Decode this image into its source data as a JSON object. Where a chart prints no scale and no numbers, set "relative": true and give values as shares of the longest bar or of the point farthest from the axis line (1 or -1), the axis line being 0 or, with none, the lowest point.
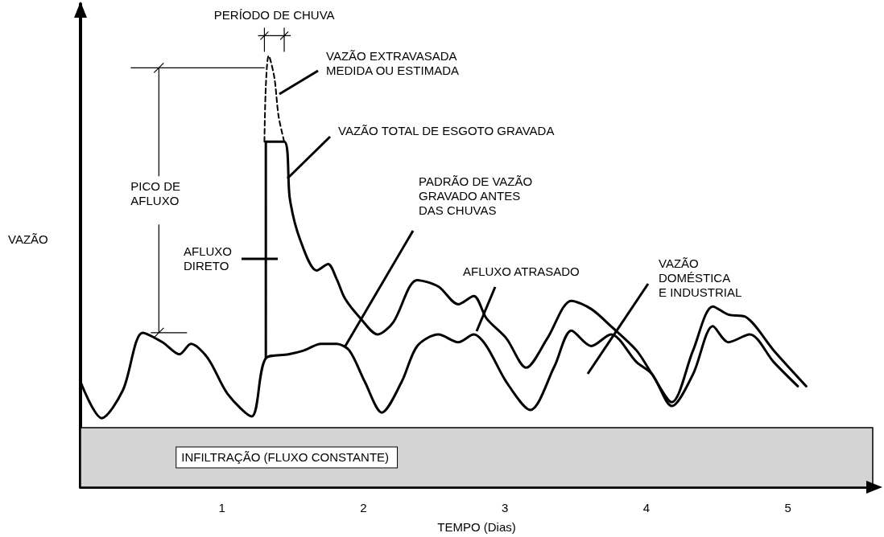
{
  "chart_data": {
    "type": "line",
    "relative": true,
    "xlabel": "TEMPO (Dias)",
    "xlim": [
      0,
      5.6
    ],
    "xticks": [
      1,
      2,
      3,
      4,
      5
    ],
    "tick_labels": "x",
    "marker": "none",
    "grid": false,
    "series": [
      {
        "color": "#000000",
        "line_style": "solid",
        "x": [
          0,
          0.15,
          0.3,
          0.44,
          0.58,
          0.7,
          0.78,
          0.9,
          1.04,
          1.21,
          1.31,
          1.47,
          1.58,
          1.7,
          1.81,
          1.9,
          2.01,
          2.13,
          2.27,
          2.38,
          2.53,
          2.67,
          2.78,
          2.87,
          3.01,
          3.18,
          3.35,
          3.47,
          3.61,
          3.75,
          3.93,
          4.04,
          4.18,
          4.33,
          4.47,
          4.58,
          4.73,
          4.9,
          5.07
        ],
        "values": [
          0.244,
          0.16,
          0.225,
          0.358,
          0.336,
          0.308,
          0.332,
          0.299,
          0.216,
          0.164,
          0.299,
          0.308,
          0.317,
          0.332,
          0.332,
          0.317,
          0.244,
          0.173,
          0.244,
          0.327,
          0.354,
          0.336,
          0.354,
          0.327,
          0.244,
          0.179,
          0.28,
          0.363,
          0.327,
          0.354,
          0.29,
          0.262,
          0.188,
          0.262,
          0.373,
          0.336,
          0.354,
          0.29,
          0.234
        ]
      },
      {
        "color": "#000000",
        "line_style": "solid",
        "x": [
          1.31,
          1.31,
          1.44,
          1.48,
          1.55,
          1.67,
          1.75,
          1.81,
          1.87,
          1.98,
          2.1,
          2.21,
          2.38,
          2.53,
          2.67,
          2.78,
          2.87,
          3.01,
          3.15,
          3.3,
          3.47,
          3.61,
          3.75,
          3.93,
          4.04,
          4.18,
          4.33,
          4.47,
          4.58,
          4.7,
          4.9,
          5.13
        ],
        "values": [
          0.299,
          0.801,
          0.801,
          0.668,
          0.576,
          0.502,
          0.517,
          0.483,
          0.437,
          0.391,
          0.354,
          0.382,
          0.48,
          0.465,
          0.424,
          0.443,
          0.391,
          0.345,
          0.277,
          0.345,
          0.432,
          0.413,
          0.373,
          0.317,
          0.262,
          0.197,
          0.317,
          0.419,
          0.4,
          0.395,
          0.317,
          0.234
        ]
      },
      {
        "color": "#000000",
        "line_style": "dashed",
        "x": [
          1.3,
          1.31,
          1.33,
          1.37,
          1.4,
          1.44
        ],
        "values": [
          0.801,
          0.93,
          1.0,
          0.95,
          0.86,
          0.801
        ]
      }
    ],
    "bands": [
      {
        "axis": "y",
        "from": 0,
        "to": 0.138,
        "label": "INFILTRAÇÃO (FLUXO CONSTANTE)",
        "color": "#d4d4d4"
      }
    ],
    "annotations": [
      "PERÍODO DE CHUVA",
      "PICO DE\nAFLUXO",
      "VAZÃO EXTRAVASADA\nMEDIDA OU ESTIMADA",
      "VAZÃO TOTAL DE ESGOTO GRAVADA",
      "PADRÃO DE VAZÃO\nGRAVADO ANTES\nDAS CHUVAS",
      "AFLUXO ATRASADO",
      "VAZÃO\nDOMÉSTICA\nE INDUSTRIAL",
      "AFLUXO\nDIRETO",
      "VAZÃO"
    ]
  }
}
